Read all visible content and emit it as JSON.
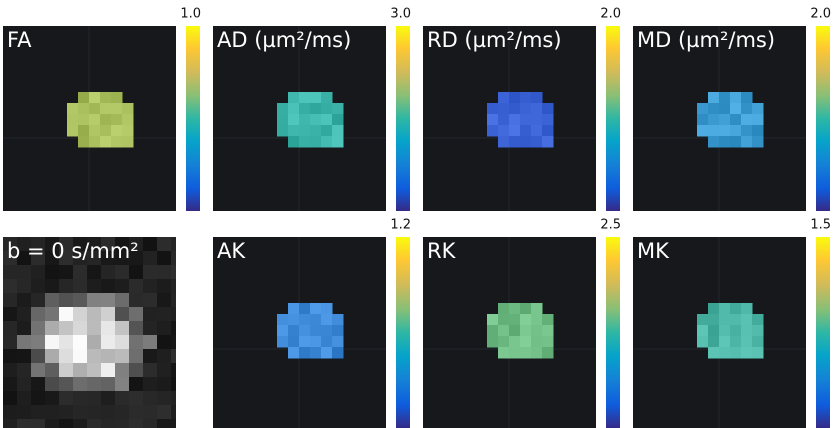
{
  "panels": [
    {
      "label": "FA",
      "max": "1.0"
    },
    {
      "label": "AD (µm²/ms)",
      "max": "3.0"
    },
    {
      "label": "RD (µm²/ms)",
      "max": "2.0"
    },
    {
      "label": "MD (µm²/ms)",
      "max": "2.0"
    },
    {
      "label": "b = 0 s/mm²"
    },
    {
      "label": "AK",
      "max": "1.2"
    },
    {
      "label": "RK",
      "max": "2.5"
    },
    {
      "label": "MK",
      "max": "1.5"
    }
  ]
}
